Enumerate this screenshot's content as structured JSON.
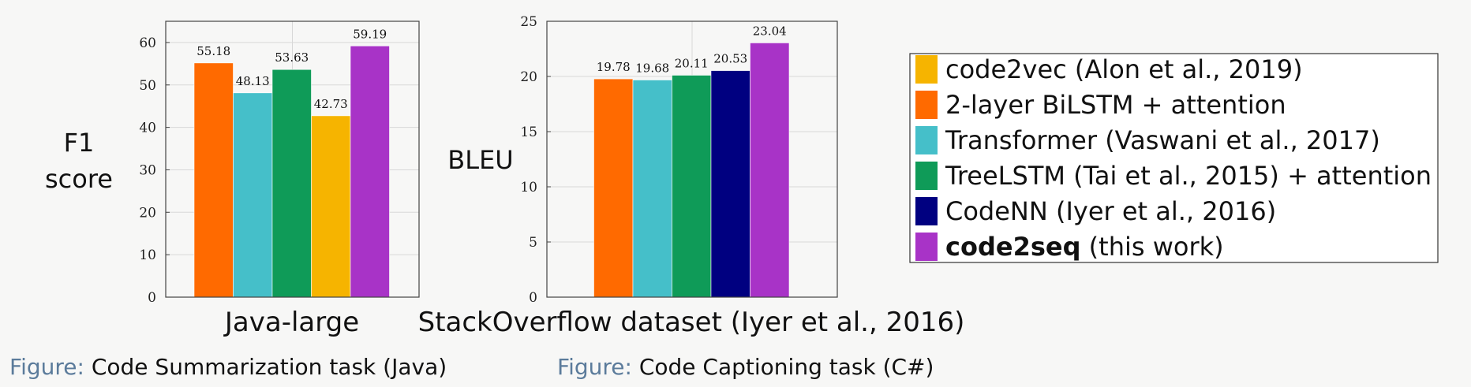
{
  "colors": {
    "code2vec": "#f6b400",
    "bilstm": "#ff6a00",
    "transformer": "#45bfc9",
    "treelstm": "#0f9b58",
    "codenn": "#000080",
    "code2seq": "#a833c7",
    "grid": "#d8d8d8",
    "axis": "#444444",
    "caption_prefix": "#5b7b9b"
  },
  "legend": [
    {
      "key": "code2vec",
      "bold": "",
      "text": "code2vec (Alon et al., 2019)"
    },
    {
      "key": "bilstm",
      "bold": "",
      "text": "2-layer BiLSTM + attention"
    },
    {
      "key": "transformer",
      "bold": "",
      "text": "Transformer (Vaswani et al., 2017)"
    },
    {
      "key": "treelstm",
      "bold": "",
      "text": "TreeLSTM (Tai et al., 2015) + attention"
    },
    {
      "key": "codenn",
      "bold": "",
      "text": "CodeNN (Iyer et al., 2016)"
    },
    {
      "key": "code2seq",
      "bold": "code2seq",
      "text": " (this work)"
    }
  ],
  "captions": [
    {
      "prefix": "Figure:",
      "text": " Code Summarization task (Java)"
    },
    {
      "prefix": "Figure:",
      "text": " Code Captioning task (C#)"
    }
  ],
  "chart_data": [
    {
      "type": "bar",
      "title": "",
      "xlabel": "Java-large",
      "ylabel_lines": [
        "F1",
        "score"
      ],
      "ylim": [
        0,
        65
      ],
      "yticks": [
        0,
        10,
        20,
        30,
        40,
        50,
        60
      ],
      "grid": true,
      "series": [
        {
          "name": "2-layer BiLSTM + attention",
          "key": "bilstm",
          "value": 55.18
        },
        {
          "name": "Transformer (Vaswani et al., 2017)",
          "key": "transformer",
          "value": 48.13
        },
        {
          "name": "TreeLSTM (Tai et al., 2015) + attention",
          "key": "treelstm",
          "value": 53.63
        },
        {
          "name": "code2vec (Alon et al., 2019)",
          "key": "code2vec",
          "value": 42.73
        },
        {
          "name": "code2seq (this work)",
          "key": "code2seq",
          "value": 59.19
        }
      ]
    },
    {
      "type": "bar",
      "title": "",
      "xlabel": "StackOverflow dataset (Iyer et al., 2016)",
      "ylabel_lines": [
        "BLEU"
      ],
      "ylim": [
        0,
        25
      ],
      "yticks": [
        0,
        5,
        10,
        15,
        20,
        25
      ],
      "grid": true,
      "series": [
        {
          "name": "code2vec (Alon et al., 2019)",
          "key": "code2vec",
          "value": 0,
          "label": ""
        },
        {
          "name": "2-layer BiLSTM + attention",
          "key": "bilstm",
          "value": 19.78
        },
        {
          "name": "Transformer (Vaswani et al., 2017)",
          "key": "transformer",
          "value": 19.68
        },
        {
          "name": "TreeLSTM (Tai et al., 2015) + attention",
          "key": "treelstm",
          "value": 20.11
        },
        {
          "name": "CodeNN (Iyer et al., 2016)",
          "key": "codenn",
          "value": 20.53
        },
        {
          "name": "code2seq (this work)",
          "key": "code2seq",
          "value": 23.04
        }
      ]
    }
  ]
}
